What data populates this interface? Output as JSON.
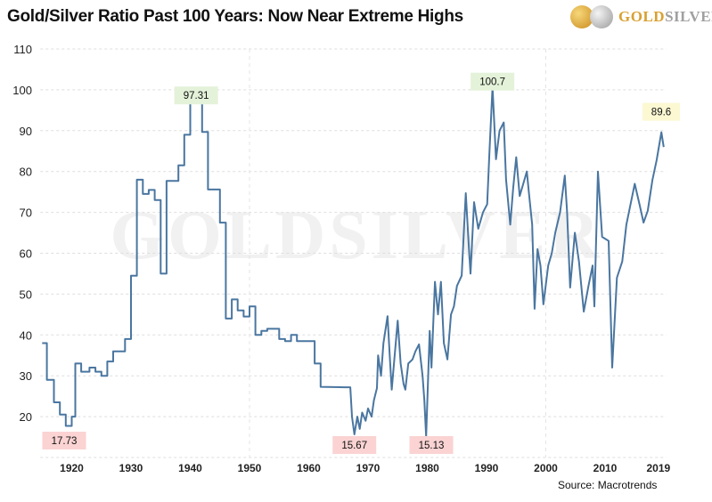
{
  "header": {
    "title": "Gold/Silver Ratio Past 100 Years: Now Near Extreme Highs",
    "logo_text": "GoldSilver",
    "watermark": "GoldSilver"
  },
  "footer": {
    "source": "Source: Macrotrends"
  },
  "colors": {
    "line": "#4a76a0",
    "low_label_bg": "#fbd3d3",
    "high_label_bg": "#e4f2d9",
    "latest_label_bg": "#fcf8d2",
    "gold": "#e0a53a",
    "silver": "#a8a8a8"
  },
  "chart_data": {
    "type": "line",
    "title": "Gold/Silver Ratio Past 100 Years: Now Near Extreme Highs",
    "xlabel": "",
    "ylabel": "",
    "xlim": [
      1914.7,
      2020.3
    ],
    "ylim": [
      10,
      110
    ],
    "x_ticks": [
      "1920",
      "1930",
      "1940",
      "1950",
      "1960",
      "1970",
      "1980",
      "1990",
      "2000",
      "2010",
      "2019"
    ],
    "x_tick_values": [
      1920,
      1930,
      1940,
      1950,
      1960,
      1970,
      1980,
      1990,
      2000,
      2010,
      2019
    ],
    "y_ticks": [
      20,
      30,
      40,
      50,
      60,
      70,
      80,
      90,
      100,
      110
    ],
    "grid": true,
    "series": [
      {
        "points": [
          [
            1915,
            38
          ],
          [
            1915.8,
            38
          ],
          [
            1915.8,
            29
          ],
          [
            1917,
            29
          ],
          [
            1917,
            23.5
          ],
          [
            1918,
            23.5
          ],
          [
            1918,
            20.5
          ],
          [
            1919,
            20.5
          ],
          [
            1919,
            17.73
          ],
          [
            1920,
            17.73
          ],
          [
            1920,
            20
          ],
          [
            1920.6,
            20
          ],
          [
            1920.6,
            33
          ],
          [
            1921.6,
            33
          ],
          [
            1921.6,
            31
          ],
          [
            1923,
            31
          ],
          [
            1923,
            32
          ],
          [
            1924,
            32
          ],
          [
            1924,
            31
          ],
          [
            1925,
            31
          ],
          [
            1925,
            30
          ],
          [
            1926,
            30
          ],
          [
            1926,
            33.5
          ],
          [
            1927,
            33.5
          ],
          [
            1927,
            36
          ],
          [
            1929,
            36
          ],
          [
            1929,
            39
          ],
          [
            1930,
            39
          ],
          [
            1930,
            54.5
          ],
          [
            1931,
            54.5
          ],
          [
            1931,
            78
          ],
          [
            1932,
            78
          ],
          [
            1932,
            74.5
          ],
          [
            1933,
            74.5
          ],
          [
            1933,
            75.5
          ],
          [
            1934,
            75.5
          ],
          [
            1934,
            73
          ],
          [
            1935,
            73
          ],
          [
            1935,
            55
          ],
          [
            1936,
            55
          ],
          [
            1936,
            77.7
          ],
          [
            1938,
            77.7
          ],
          [
            1938,
            81.5
          ],
          [
            1939,
            81.5
          ],
          [
            1939,
            89
          ],
          [
            1940,
            89
          ],
          [
            1940,
            97.31
          ],
          [
            1942,
            97.31
          ],
          [
            1942,
            89.7
          ],
          [
            1943,
            89.7
          ],
          [
            1943,
            75.6
          ],
          [
            1945,
            75.6
          ],
          [
            1945,
            67.5
          ],
          [
            1946,
            67.5
          ],
          [
            1946,
            44
          ],
          [
            1947,
            44
          ],
          [
            1947,
            48.7
          ],
          [
            1948,
            48.7
          ],
          [
            1948,
            46
          ],
          [
            1949,
            46
          ],
          [
            1949,
            44.5
          ],
          [
            1950,
            44.5
          ],
          [
            1950,
            47
          ],
          [
            1951,
            47
          ],
          [
            1951,
            40
          ],
          [
            1952,
            40
          ],
          [
            1952,
            41
          ],
          [
            1953,
            41
          ],
          [
            1953,
            41.5
          ],
          [
            1955,
            41.5
          ],
          [
            1955,
            39
          ],
          [
            1956,
            39
          ],
          [
            1956,
            38.5
          ],
          [
            1957,
            38.5
          ],
          [
            1957,
            40
          ],
          [
            1958,
            40
          ],
          [
            1958,
            38.5
          ],
          [
            1961,
            38.5
          ],
          [
            1961,
            33
          ],
          [
            1962,
            33
          ],
          [
            1962,
            27.3
          ],
          [
            1966,
            27.2
          ],
          [
            1967,
            27.2
          ],
          [
            1967.3,
            20
          ],
          [
            1967.7,
            15.67
          ],
          [
            1968.2,
            20
          ],
          [
            1968.6,
            17
          ],
          [
            1969,
            21
          ],
          [
            1969.6,
            19
          ],
          [
            1970,
            22
          ],
          [
            1970.6,
            20
          ],
          [
            1971,
            24
          ],
          [
            1971.5,
            27
          ],
          [
            1971.7,
            35
          ],
          [
            1972.2,
            30
          ],
          [
            1972.6,
            38
          ],
          [
            1973.3,
            44.6
          ],
          [
            1973.7,
            34
          ],
          [
            1974,
            26.6
          ],
          [
            1974.5,
            35
          ],
          [
            1975,
            43.5
          ],
          [
            1975.5,
            33
          ],
          [
            1976,
            28
          ],
          [
            1976.3,
            26.6
          ],
          [
            1976.8,
            33
          ],
          [
            1977.5,
            34
          ],
          [
            1978,
            36
          ],
          [
            1978.6,
            37.7
          ],
          [
            1979.2,
            30
          ],
          [
            1979.5,
            24
          ],
          [
            1979.8,
            15.13
          ],
          [
            1980.4,
            41
          ],
          [
            1980.7,
            32
          ],
          [
            1981.3,
            53
          ],
          [
            1981.8,
            45
          ],
          [
            1982.3,
            53
          ],
          [
            1982.8,
            38
          ],
          [
            1983.4,
            34
          ],
          [
            1984,
            45
          ],
          [
            1984.5,
            47
          ],
          [
            1985,
            52
          ],
          [
            1985.8,
            54.5
          ],
          [
            1986.2,
            66
          ],
          [
            1986.5,
            74.7
          ],
          [
            1987,
            62
          ],
          [
            1987.3,
            55
          ],
          [
            1987.9,
            72.5
          ],
          [
            1988.6,
            66
          ],
          [
            1989.4,
            70
          ],
          [
            1990.1,
            72
          ],
          [
            1990.5,
            85
          ],
          [
            1991,
            100.7
          ],
          [
            1991.6,
            83
          ],
          [
            1992.2,
            90
          ],
          [
            1992.9,
            92
          ],
          [
            1993.3,
            78
          ],
          [
            1994,
            67
          ],
          [
            1994.5,
            76
          ],
          [
            1995,
            83.5
          ],
          [
            1995.6,
            74
          ],
          [
            1996.2,
            77
          ],
          [
            1996.8,
            80
          ],
          [
            1997.2,
            74
          ],
          [
            1997.7,
            67
          ],
          [
            1998.1,
            46.4
          ],
          [
            1998.6,
            61
          ],
          [
            1999.1,
            57
          ],
          [
            1999.6,
            47.5
          ],
          [
            2000.4,
            57
          ],
          [
            2001,
            60
          ],
          [
            2001.6,
            65
          ],
          [
            2002.4,
            70
          ],
          [
            2003.2,
            79
          ],
          [
            2003.6,
            70
          ],
          [
            2004.1,
            51.6
          ],
          [
            2004.9,
            65
          ],
          [
            2005.6,
            58
          ],
          [
            2006.4,
            45.7
          ],
          [
            2007.2,
            52
          ],
          [
            2007.9,
            57
          ],
          [
            2008.2,
            47
          ],
          [
            2008.8,
            80
          ],
          [
            2009.5,
            64
          ],
          [
            2010.6,
            63
          ],
          [
            2011.2,
            32
          ],
          [
            2012,
            54
          ],
          [
            2012.9,
            58
          ],
          [
            2013.6,
            67
          ],
          [
            2014.3,
            72
          ],
          [
            2015,
            77
          ],
          [
            2015.8,
            72
          ],
          [
            2016.5,
            67.5
          ],
          [
            2017.2,
            70.4
          ],
          [
            2018,
            78
          ],
          [
            2018.7,
            82.8
          ],
          [
            2019.5,
            89.6
          ],
          [
            2019.9,
            86
          ]
        ]
      }
    ],
    "annotations": [
      {
        "label": "17.73",
        "x": 1919.5,
        "y": 17.73,
        "type": "low"
      },
      {
        "label": "97.31",
        "x": 1941,
        "y": 97.31,
        "type": "high"
      },
      {
        "label": "15.67",
        "x": 1967.7,
        "y": 15.67,
        "type": "low"
      },
      {
        "label": "15.13",
        "x": 1979.8,
        "y": 15.13,
        "type": "low"
      },
      {
        "label": "100.7",
        "x": 1991,
        "y": 100.7,
        "type": "high"
      },
      {
        "label": "89.6",
        "x": 2019.5,
        "y": 89.6,
        "type": "latest"
      }
    ]
  }
}
